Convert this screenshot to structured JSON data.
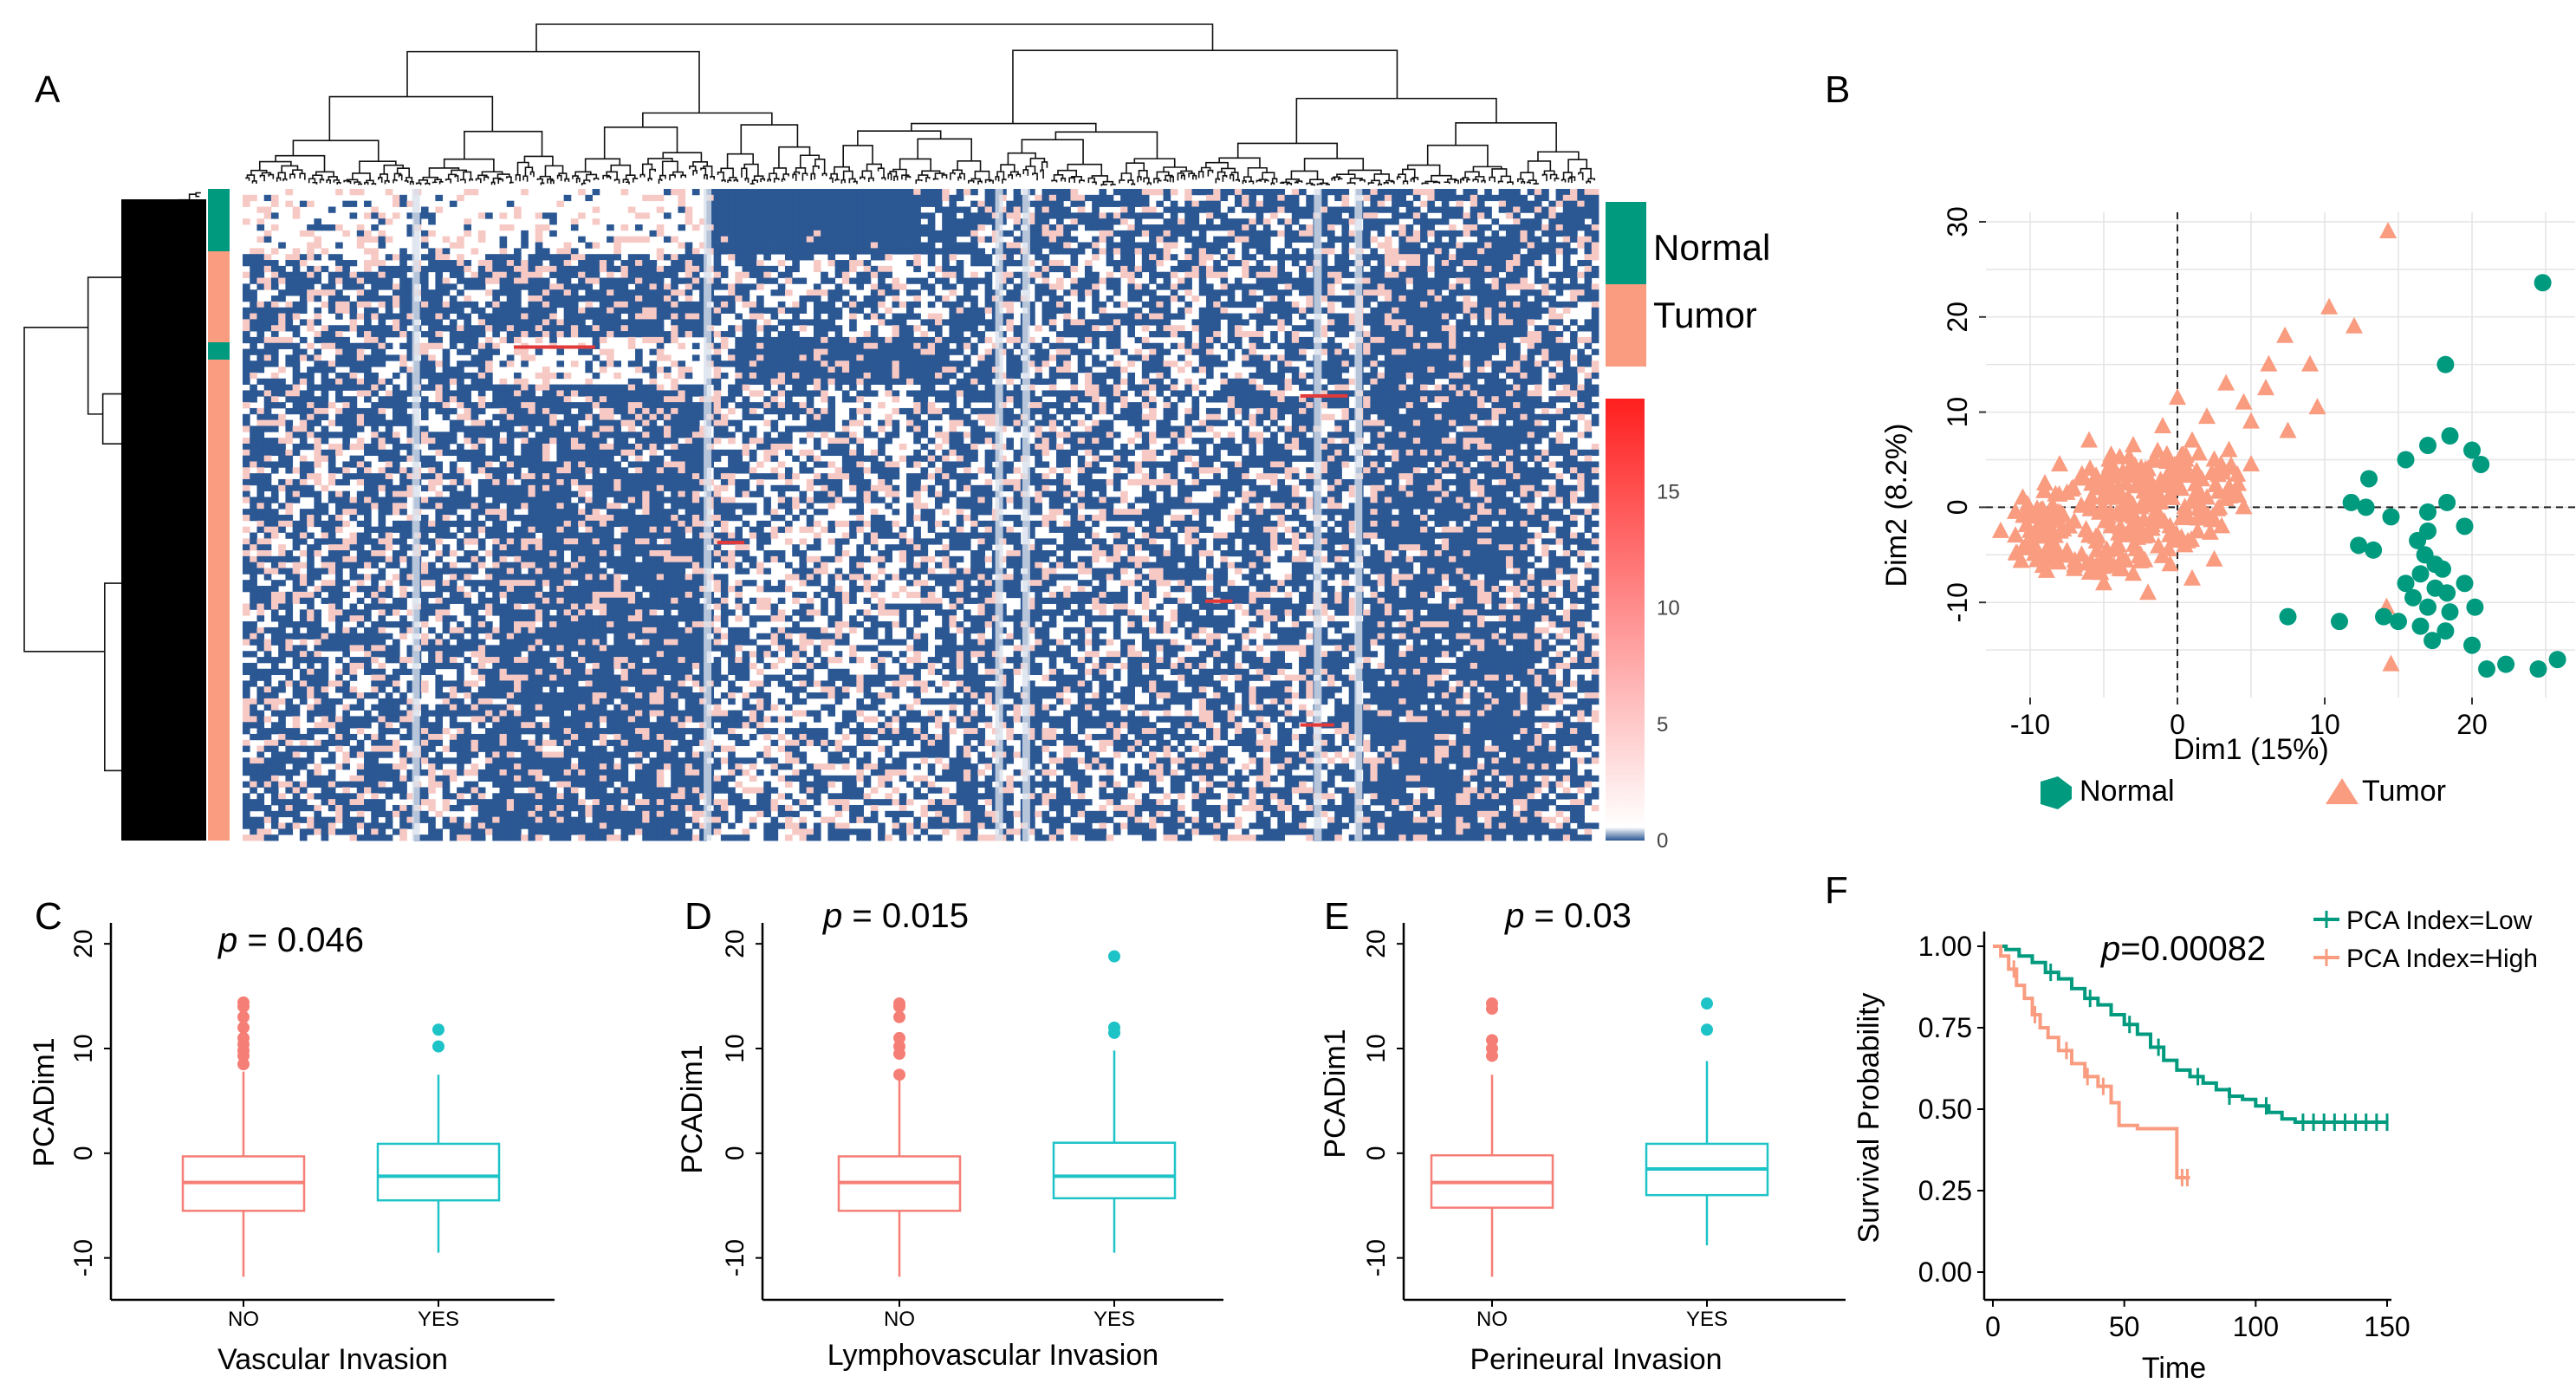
{
  "colors": {
    "normal": "#009a7e",
    "tumor": "#f99c80",
    "no_box": "#f57f77",
    "yes_box": "#1ec3c7",
    "heat_low": "#2b5793",
    "heat_mid": "#ffffff",
    "heat_high": "#ff1f1f",
    "grid": "#e4e4e4"
  },
  "chart_data": [
    {
      "panel": "A",
      "type": "heatmap",
      "panel_label": "A",
      "annotation_legend": [
        "Normal",
        "Tumor"
      ],
      "colorbar_ticks": [
        0,
        5,
        10,
        15
      ],
      "colorbar_range": [
        0,
        19
      ]
    },
    {
      "panel": "B",
      "type": "scatter",
      "panel_label": "B",
      "xlabel": "Dim1 (15%)",
      "ylabel": "Dim2 (8.2%)",
      "xlim": [
        -13,
        27
      ],
      "ylim": [
        -20,
        31
      ],
      "xticks": [
        -10,
        0,
        10,
        20
      ],
      "yticks": [
        -10,
        0,
        10,
        20,
        30
      ],
      "legend": [
        "Normal",
        "Tumor"
      ],
      "series": [
        {
          "name": "Normal",
          "points": [
            [
              24.8,
              23.6
            ],
            [
              18.2,
              15.0
            ],
            [
              20.0,
              6.0
            ],
            [
              17.0,
              6.5
            ],
            [
              18.5,
              7.5
            ],
            [
              20.6,
              4.5
            ],
            [
              15.5,
              5.0
            ],
            [
              13.0,
              3.0
            ],
            [
              11.8,
              0.5
            ],
            [
              12.8,
              0.0
            ],
            [
              18.3,
              0.5
            ],
            [
              17.0,
              -0.5
            ],
            [
              14.5,
              -1.0
            ],
            [
              17.0,
              -2.5
            ],
            [
              19.5,
              -2.0
            ],
            [
              16.3,
              -3.5
            ],
            [
              12.3,
              -4.0
            ],
            [
              13.3,
              -4.5
            ],
            [
              16.8,
              -5.0
            ],
            [
              17.5,
              -6.0
            ],
            [
              16.5,
              -7.0
            ],
            [
              18.0,
              -6.5
            ],
            [
              15.5,
              -8.0
            ],
            [
              17.5,
              -8.5
            ],
            [
              19.5,
              -8.0
            ],
            [
              18.3,
              -9.0
            ],
            [
              16.0,
              -9.5
            ],
            [
              20.2,
              -10.5
            ],
            [
              17.0,
              -10.5
            ],
            [
              18.5,
              -11.0
            ],
            [
              14.0,
              -11.5
            ],
            [
              15.0,
              -12.0
            ],
            [
              16.5,
              -12.5
            ],
            [
              11.0,
              -12.0
            ],
            [
              7.5,
              -11.5
            ],
            [
              18.2,
              -13.0
            ],
            [
              17.3,
              -14.0
            ],
            [
              20.0,
              -14.5
            ],
            [
              25.8,
              -16.0
            ],
            [
              24.5,
              -17.0
            ],
            [
              22.3,
              -16.5
            ],
            [
              21.0,
              -17.0
            ]
          ]
        },
        {
          "name": "Tumor",
          "points": [
            [
              14.3,
              29.0
            ],
            [
              10.3,
              21.0
            ],
            [
              12.0,
              19.0
            ],
            [
              7.3,
              18.0
            ],
            [
              6.2,
              15.0
            ],
            [
              9.0,
              15.0
            ],
            [
              3.3,
              13.0
            ],
            [
              6.0,
              12.5
            ],
            [
              0.0,
              11.5
            ],
            [
              4.5,
              11.0
            ],
            [
              9.5,
              10.5
            ],
            [
              2.0,
              9.5
            ],
            [
              5.0,
              9.0
            ],
            [
              -1.0,
              8.5
            ],
            [
              7.5,
              8.0
            ],
            [
              -6.0,
              7.0
            ],
            [
              1.0,
              7.0
            ],
            [
              -3.0,
              6.5
            ],
            [
              3.5,
              6.0
            ],
            [
              -4.5,
              5.5
            ],
            [
              2.5,
              5.0
            ],
            [
              -8.0,
              4.5
            ],
            [
              0.5,
              4.5
            ],
            [
              5.0,
              4.5
            ],
            [
              -2.0,
              4.0
            ],
            [
              -6.5,
              3.0
            ],
            [
              1.5,
              3.0
            ],
            [
              -9.0,
              2.5
            ],
            [
              -3.5,
              2.5
            ],
            [
              -5.5,
              2.0
            ],
            [
              0.0,
              2.0
            ],
            [
              3.5,
              2.0
            ],
            [
              -7.5,
              1.5
            ],
            [
              -1.5,
              1.5
            ],
            [
              -10.5,
              1.0
            ],
            [
              -4.0,
              1.0
            ],
            [
              2.0,
              1.0
            ],
            [
              -6.0,
              0.5
            ],
            [
              -8.5,
              0.0
            ],
            [
              -2.5,
              0.0
            ],
            [
              0.5,
              0.0
            ],
            [
              4.5,
              0.0
            ],
            [
              -11.0,
              -0.5
            ],
            [
              -5.0,
              -0.5
            ],
            [
              -9.5,
              -1.0
            ],
            [
              -3.0,
              -1.0
            ],
            [
              1.5,
              -1.0
            ],
            [
              -7.0,
              -1.5
            ],
            [
              -12.0,
              -2.5
            ],
            [
              -4.5,
              -2.0
            ],
            [
              -0.5,
              -2.0
            ],
            [
              3.0,
              -2.0
            ],
            [
              -10.0,
              -2.5
            ],
            [
              -6.0,
              -3.0
            ],
            [
              -2.0,
              -3.0
            ],
            [
              -8.5,
              -3.5
            ],
            [
              -4.0,
              -4.0
            ],
            [
              0.5,
              -4.0
            ],
            [
              -6.5,
              -5.0
            ],
            [
              -2.5,
              -5.0
            ],
            [
              -9.0,
              -5.5
            ],
            [
              -4.5,
              -6.0
            ],
            [
              -0.5,
              -6.0
            ],
            [
              -7.0,
              -6.5
            ],
            [
              -3.0,
              -7.0
            ],
            [
              -5.0,
              -8.0
            ],
            [
              -2.0,
              -9.0
            ],
            [
              1.0,
              -7.5
            ],
            [
              2.5,
              -5.5
            ],
            [
              14.2,
              -10.5
            ],
            [
              14.5,
              -16.5
            ]
          ]
        }
      ]
    },
    {
      "panel": "C",
      "type": "boxplot",
      "panel_label": "C",
      "xlabel": "Vascular Invasion",
      "ylabel": "PCADim1",
      "categories": [
        "NO",
        "YES"
      ],
      "yticks": [
        -10,
        0,
        10,
        20
      ],
      "ylim": [
        -14,
        22
      ],
      "p_prefix": "p",
      "p_text": " = 0.046",
      "boxes": [
        {
          "name": "NO",
          "min": -11.8,
          "q1": -5.5,
          "median": -2.8,
          "q3": -0.3,
          "max": 7.8,
          "outliers": [
            8.5,
            9.3,
            9.8,
            10.4,
            11.0,
            12.0,
            13.0,
            14.0,
            14.4
          ]
        },
        {
          "name": "YES",
          "min": -9.5,
          "q1": -4.5,
          "median": -2.2,
          "q3": 0.9,
          "max": 7.5,
          "outliers": [
            10.2,
            11.8
          ]
        }
      ]
    },
    {
      "panel": "D",
      "type": "boxplot",
      "panel_label": "D",
      "xlabel": "Lymphovascular Invasion",
      "ylabel": "PCADim1",
      "categories": [
        "NO",
        "YES"
      ],
      "yticks": [
        -10,
        0,
        10,
        20
      ],
      "ylim": [
        -14,
        22
      ],
      "p_prefix": "p",
      "p_text": " = 0.015",
      "boxes": [
        {
          "name": "NO",
          "min": -11.8,
          "q1": -5.5,
          "median": -2.8,
          "q3": -0.3,
          "max": 7.8,
          "outliers": [
            7.5,
            9.5,
            10.2,
            11.0,
            13.0,
            14.0,
            14.3
          ]
        },
        {
          "name": "YES",
          "min": -9.5,
          "q1": -4.3,
          "median": -2.2,
          "q3": 1.0,
          "max": 9.8,
          "outliers": [
            11.5,
            12.0,
            18.8
          ]
        }
      ]
    },
    {
      "panel": "E",
      "type": "boxplot",
      "panel_label": "E",
      "xlabel": "Perineural Invasion",
      "ylabel": "PCADim1",
      "categories": [
        "NO",
        "YES"
      ],
      "yticks": [
        -10,
        0,
        10,
        20
      ],
      "ylim": [
        -14,
        22
      ],
      "p_prefix": "p",
      "p_text": " = 0.03",
      "boxes": [
        {
          "name": "NO",
          "min": -11.8,
          "q1": -5.2,
          "median": -2.8,
          "q3": -0.2,
          "max": 7.5,
          "outliers": [
            9.3,
            10.0,
            10.8,
            13.8,
            14.3
          ]
        },
        {
          "name": "YES",
          "min": -8.8,
          "q1": -4.0,
          "median": -1.5,
          "q3": 0.9,
          "max": 8.8,
          "outliers": [
            11.8,
            14.3
          ]
        }
      ]
    },
    {
      "panel": "F",
      "type": "line",
      "panel_label": "F",
      "xlabel": "Time",
      "ylabel": "Survival Probability",
      "xlim": [
        0,
        160
      ],
      "ylim": [
        0,
        1.03
      ],
      "xticks": [
        0,
        50,
        100,
        150
      ],
      "yticks": [
        "0.00",
        "0.25",
        "0.50",
        "0.75",
        "1.00"
      ],
      "p_prefix": "p",
      "p_text": "=0.00082",
      "series": [
        {
          "name": "PCA Index=Low",
          "points": [
            [
              0,
              1.0
            ],
            [
              5,
              0.99
            ],
            [
              10,
              0.97
            ],
            [
              15,
              0.95
            ],
            [
              20,
              0.92
            ],
            [
              25,
              0.9
            ],
            [
              30,
              0.87
            ],
            [
              35,
              0.84
            ],
            [
              40,
              0.82
            ],
            [
              45,
              0.79
            ],
            [
              50,
              0.76
            ],
            [
              55,
              0.73
            ],
            [
              60,
              0.69
            ],
            [
              65,
              0.65
            ],
            [
              70,
              0.62
            ],
            [
              75,
              0.6
            ],
            [
              80,
              0.58
            ],
            [
              85,
              0.56
            ],
            [
              90,
              0.54
            ],
            [
              95,
              0.53
            ],
            [
              100,
              0.51
            ],
            [
              105,
              0.49
            ],
            [
              110,
              0.47
            ],
            [
              115,
              0.46
            ],
            [
              150,
              0.46
            ]
          ],
          "censor_x": [
            22,
            37,
            52,
            63,
            78,
            90,
            104,
            118,
            122,
            126,
            130,
            134,
            138,
            142,
            146,
            150
          ]
        },
        {
          "name": "PCA Index=High",
          "points": [
            [
              0,
              1.0
            ],
            [
              3,
              0.97
            ],
            [
              6,
              0.93
            ],
            [
              9,
              0.88
            ],
            [
              12,
              0.84
            ],
            [
              15,
              0.79
            ],
            [
              18,
              0.75
            ],
            [
              21,
              0.72
            ],
            [
              25,
              0.68
            ],
            [
              30,
              0.64
            ],
            [
              35,
              0.6
            ],
            [
              40,
              0.57
            ],
            [
              45,
              0.52
            ],
            [
              48,
              0.45
            ],
            [
              55,
              0.44
            ],
            [
              68,
              0.44
            ],
            [
              70,
              0.29
            ],
            [
              75,
              0.29
            ]
          ],
          "censor_x": [
            8,
            16,
            28,
            36,
            42,
            72,
            74
          ]
        }
      ]
    }
  ]
}
